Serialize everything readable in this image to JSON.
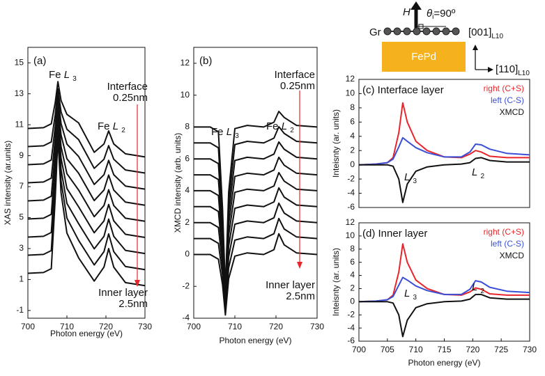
{
  "diagram": {
    "field": "H",
    "angle_symbol": "θ",
    "angle_sub": "i",
    "angle_value": "=90º",
    "layer_top": "Gr",
    "substrate": "FePd",
    "axis_vertical": {
      "main": "[001]",
      "sub": "L10"
    },
    "axis_horizontal": {
      "main": "[110]",
      "sub": "L10"
    }
  },
  "chart_data": [
    {
      "type": "line",
      "panel_label": "(a)",
      "x_label": "Photon energy (eV)",
      "y_label": "XAS intensity (ar.units)",
      "color": "#111111",
      "x": [
        700,
        704,
        706,
        707,
        707.7,
        708.5,
        710,
        713,
        717,
        719.5,
        720.7,
        722,
        725,
        730
      ],
      "series": [
        {
          "values": [
            1.4,
            1.45,
            1.7,
            6.2,
            10.1,
            6.6,
            4.0,
            2.4,
            0.9,
            1.8,
            3.0,
            1.8,
            0.8,
            0.6
          ]
        },
        {
          "values": [
            2.57,
            2.62,
            2.87,
            6.96,
            10.56,
            7.36,
            4.97,
            3.53,
            1.94,
            2.8,
            3.95,
            2.8,
            1.84,
            1.64
          ]
        },
        {
          "values": [
            3.74,
            3.79,
            4.04,
            7.74,
            11.02,
            8.11,
            5.92,
            4.61,
            2.98,
            3.79,
            4.9,
            3.79,
            2.88,
            2.68
          ]
        },
        {
          "values": [
            4.91,
            4.96,
            5.21,
            8.52,
            11.48,
            8.85,
            6.88,
            5.7,
            4.02,
            4.79,
            5.85,
            4.79,
            3.92,
            3.72
          ]
        },
        {
          "values": [
            6.08,
            6.13,
            6.38,
            9.3,
            11.94,
            9.6,
            7.84,
            6.78,
            5.06,
            5.78,
            6.8,
            5.78,
            4.96,
            4.76
          ]
        },
        {
          "values": [
            7.25,
            7.3,
            7.55,
            10.08,
            12.4,
            10.34,
            8.8,
            7.87,
            6.1,
            6.78,
            7.75,
            6.78,
            6.0,
            5.8
          ]
        },
        {
          "values": [
            8.42,
            8.47,
            8.72,
            10.86,
            12.86,
            11.08,
            9.75,
            8.95,
            7.14,
            7.77,
            8.7,
            7.77,
            7.04,
            6.84
          ]
        },
        {
          "values": [
            9.59,
            9.64,
            9.89,
            11.64,
            13.32,
            11.83,
            10.71,
            10.04,
            8.18,
            8.77,
            9.65,
            8.77,
            8.08,
            7.88
          ]
        },
        {
          "values": [
            10.76,
            10.81,
            11.06,
            12.42,
            13.78,
            12.57,
            11.67,
            11.12,
            9.22,
            9.76,
            10.6,
            9.76,
            9.12,
            8.92
          ]
        }
      ],
      "xlim": [
        700,
        730
      ],
      "xticks": [
        700,
        710,
        720,
        730
      ],
      "ylim": [
        -1.5,
        16
      ],
      "yticks": [
        -1,
        1,
        3,
        5,
        7,
        9,
        11,
        13,
        15
      ],
      "peak_labels": [
        {
          "element": "Fe",
          "symbol": "L",
          "sub": "3"
        },
        {
          "element": "Fe",
          "symbol": "L",
          "sub": "2"
        }
      ],
      "arrow_top": [
        "Interface",
        "0.25nm"
      ],
      "arrow_bottom": [
        "Inner layer",
        "2.5nm"
      ]
    },
    {
      "type": "line",
      "panel_label": "(b)",
      "x_label": "Photon energy (eV)",
      "y_label": "XMCD intensity (arb. units)",
      "color": "#111111",
      "x": [
        700,
        704,
        706,
        707,
        707.7,
        708.5,
        710,
        713,
        717,
        719.5,
        720.7,
        722,
        725,
        730
      ],
      "series": [
        {
          "values": [
            0,
            0,
            -0.3,
            -1.9,
            -3.8,
            -1.52,
            -0.1,
            0.1,
            0,
            0.3,
            1.3,
            0.6,
            0.1,
            0
          ]
        },
        {
          "values": [
            1,
            1,
            0.7,
            -1.3,
            -3.6,
            -0.84,
            0.9,
            1.1,
            1,
            1.3,
            2.26,
            1.6,
            1.1,
            1
          ]
        },
        {
          "values": [
            2,
            2,
            1.7,
            -0.7,
            -3.4,
            -0.16,
            1.9,
            2.1,
            2,
            2.3,
            3.22,
            2.6,
            2.1,
            2
          ]
        },
        {
          "values": [
            3,
            3,
            2.7,
            -0.1,
            -3.2,
            0.52,
            2.9,
            3.1,
            3,
            3.3,
            4.18,
            3.6,
            3.1,
            3
          ]
        },
        {
          "values": [
            4,
            4,
            3.7,
            0.5,
            -3.0,
            1.2,
            3.9,
            4.1,
            4,
            4.3,
            5.14,
            4.6,
            4.1,
            4
          ]
        },
        {
          "values": [
            5,
            5,
            4.7,
            1.1,
            -2.8,
            1.88,
            4.9,
            5.1,
            5,
            5.3,
            6.1,
            5.6,
            5.1,
            5
          ]
        },
        {
          "values": [
            6,
            6,
            5.7,
            1.7,
            -2.6,
            2.56,
            5.9,
            6.1,
            6,
            6.3,
            7.06,
            6.6,
            6.1,
            6
          ]
        },
        {
          "values": [
            7,
            7,
            6.7,
            2.3,
            -2.4,
            3.24,
            6.9,
            7.1,
            7,
            7.3,
            8.02,
            7.6,
            7.1,
            7
          ]
        },
        {
          "values": [
            8,
            8,
            7.7,
            2.9,
            -2.2,
            3.92,
            7.9,
            8.1,
            8,
            8.3,
            8.98,
            8.6,
            8.1,
            8
          ]
        }
      ],
      "xlim": [
        700,
        730
      ],
      "xticks": [
        700,
        710,
        720,
        730
      ],
      "ylim": [
        -4,
        13
      ],
      "yticks": [
        -4,
        -2,
        0,
        2,
        4,
        6,
        8,
        10,
        12
      ],
      "peak_labels": [
        {
          "element": "Fe",
          "symbol": "L",
          "sub": "3"
        },
        {
          "element": "Fe",
          "symbol": "L",
          "sub": "2"
        }
      ],
      "arrow_top": [
        "Interface",
        "0.25nm"
      ],
      "arrow_bottom": [
        "Inner layer",
        "2.5nm"
      ]
    },
    {
      "type": "line",
      "title": "(c) Interface layer",
      "y_label": "Inteisnty (ar. units)",
      "x": [
        700,
        703,
        705,
        706,
        707,
        707.7,
        708.5,
        710,
        712,
        715,
        718,
        719.5,
        720.5,
        721.5,
        723,
        726,
        730
      ],
      "series": [
        {
          "name": "right (C+S)",
          "color": "#e8252a",
          "values": [
            0,
            0.1,
            0.3,
            1.0,
            4.5,
            8.7,
            6.0,
            3.3,
            2.0,
            1.1,
            1.0,
            1.5,
            2.0,
            1.8,
            1.2,
            1.0,
            1.0
          ]
        },
        {
          "name": "left (C-S)",
          "color": "#3a4fd6",
          "values": [
            0,
            0.1,
            0.3,
            0.8,
            2.5,
            3.8,
            3.3,
            2.4,
            1.7,
            1.1,
            1.1,
            1.8,
            2.9,
            2.8,
            2.2,
            1.6,
            1.4
          ]
        },
        {
          "name": "XMCD",
          "color": "#111111",
          "values": [
            0,
            0,
            0,
            -0.2,
            -2.0,
            -5.3,
            -2.7,
            -0.9,
            -0.3,
            0,
            0.1,
            0.3,
            0.9,
            1.0,
            0.6,
            0.4,
            0.4
          ]
        }
      ],
      "xlim": [
        700,
        730
      ],
      "ylim": [
        -6,
        12
      ],
      "yticks": [
        -6,
        -4,
        -2,
        0,
        2,
        4,
        6,
        8,
        10,
        12
      ],
      "peak_labels": [
        {
          "symbol": "L",
          "sub": "3"
        },
        {
          "symbol": "L",
          "sub": "2"
        }
      ]
    },
    {
      "type": "line",
      "title": "(d) Inner layer",
      "x_label": "Photon energy (eV)",
      "y_label": "Inteisnty (ar. units)",
      "x": [
        700,
        703,
        705,
        706,
        707,
        707.7,
        708.5,
        710,
        712,
        715,
        718,
        719.5,
        720.5,
        721.5,
        723,
        726,
        730
      ],
      "series": [
        {
          "name": "right (C+S)",
          "color": "#e8252a",
          "values": [
            0,
            0.1,
            0.3,
            1.0,
            4.5,
            8.8,
            6.0,
            3.3,
            2.0,
            1.1,
            1.0,
            1.5,
            2.1,
            1.9,
            1.2,
            1.0,
            1.0
          ]
        },
        {
          "name": "left (C-S)",
          "color": "#3a4fd6",
          "values": [
            0,
            0.1,
            0.3,
            0.8,
            2.5,
            3.7,
            3.3,
            2.4,
            1.7,
            1.1,
            1.1,
            1.9,
            3.2,
            3.0,
            2.2,
            1.6,
            1.4
          ]
        },
        {
          "name": "XMCD",
          "color": "#111111",
          "values": [
            0,
            0,
            0,
            -0.2,
            -2.0,
            -5.3,
            -2.8,
            -0.9,
            -0.3,
            0,
            0.1,
            0.4,
            1.1,
            1.1,
            0.6,
            0.4,
            0.4
          ]
        }
      ],
      "xlim": [
        700,
        730
      ],
      "xticks": [
        700,
        705,
        710,
        715,
        720,
        725,
        730
      ],
      "ylim": [
        -6,
        12
      ],
      "yticks": [
        -6,
        -4,
        -2,
        0,
        2,
        4,
        6,
        8,
        10,
        12
      ],
      "peak_labels": [
        {
          "symbol": "L",
          "sub": "3"
        },
        {
          "symbol": "L",
          "sub": "2"
        }
      ]
    }
  ]
}
